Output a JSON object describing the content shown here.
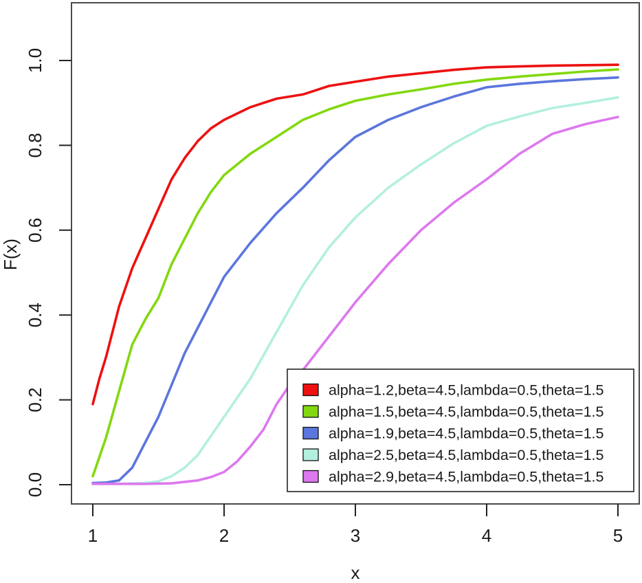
{
  "figure": {
    "background": "#ffffff",
    "border_color": "#4a4a4a",
    "tick_color": "#222222",
    "text_color": "#1a1a1a",
    "legend_background": "#ffffff",
    "legend_border_color": "#222222"
  },
  "chart_data": {
    "type": "line",
    "title": "",
    "xlabel": "x",
    "ylabel": "F(x)",
    "xlim": [
      1,
      5
    ],
    "ylim": [
      0.0,
      1.0
    ],
    "x_ticks": [
      "1",
      "2",
      "3",
      "4",
      "5"
    ],
    "y_ticks": [
      "0.0",
      "0.2",
      "0.4",
      "0.6",
      "0.8",
      "1.0"
    ],
    "grid": false,
    "legend_position": "bottom-right",
    "legend_has_border": true,
    "series": [
      {
        "name": "alpha=1.2,beta=4.5,lambda=0.5,theta=1.5",
        "color": "#ed1111",
        "points": [
          [
            1.0,
            0.19
          ],
          [
            1.05,
            0.25
          ],
          [
            1.1,
            0.3
          ],
          [
            1.2,
            0.42
          ],
          [
            1.3,
            0.51
          ],
          [
            1.4,
            0.58
          ],
          [
            1.5,
            0.65
          ],
          [
            1.6,
            0.72
          ],
          [
            1.7,
            0.77
          ],
          [
            1.8,
            0.81
          ],
          [
            1.9,
            0.84
          ],
          [
            2.0,
            0.86
          ],
          [
            2.2,
            0.89
          ],
          [
            2.4,
            0.91
          ],
          [
            2.6,
            0.92
          ],
          [
            2.8,
            0.94
          ],
          [
            3.0,
            0.95
          ],
          [
            3.25,
            0.962
          ],
          [
            3.5,
            0.97
          ],
          [
            3.75,
            0.978
          ],
          [
            4.0,
            0.984
          ],
          [
            4.25,
            0.986
          ],
          [
            4.5,
            0.988
          ],
          [
            4.75,
            0.989
          ],
          [
            5.0,
            0.99
          ]
        ]
      },
      {
        "name": "alpha=1.5,beta=4.5,lambda=0.5,theta=1.5",
        "color": "#82d80e",
        "points": [
          [
            1.0,
            0.02
          ],
          [
            1.1,
            0.11
          ],
          [
            1.2,
            0.22
          ],
          [
            1.3,
            0.33
          ],
          [
            1.4,
            0.39
          ],
          [
            1.5,
            0.44
          ],
          [
            1.6,
            0.52
          ],
          [
            1.7,
            0.58
          ],
          [
            1.8,
            0.64
          ],
          [
            1.9,
            0.69
          ],
          [
            2.0,
            0.73
          ],
          [
            2.2,
            0.78
          ],
          [
            2.4,
            0.82
          ],
          [
            2.6,
            0.86
          ],
          [
            2.8,
            0.885
          ],
          [
            3.0,
            0.905
          ],
          [
            3.25,
            0.92
          ],
          [
            3.5,
            0.932
          ],
          [
            3.75,
            0.945
          ],
          [
            4.0,
            0.955
          ],
          [
            4.25,
            0.962
          ],
          [
            4.5,
            0.968
          ],
          [
            4.75,
            0.974
          ],
          [
            5.0,
            0.979
          ]
        ]
      },
      {
        "name": "alpha=1.9,beta=4.5,lambda=0.5,theta=1.5",
        "color": "#5b76dc",
        "points": [
          [
            1.0,
            0.004
          ],
          [
            1.1,
            0.005
          ],
          [
            1.2,
            0.01
          ],
          [
            1.3,
            0.04
          ],
          [
            1.35,
            0.07
          ],
          [
            1.4,
            0.1
          ],
          [
            1.5,
            0.16
          ],
          [
            1.6,
            0.235
          ],
          [
            1.7,
            0.31
          ],
          [
            1.8,
            0.37
          ],
          [
            1.9,
            0.43
          ],
          [
            2.0,
            0.49
          ],
          [
            2.2,
            0.57
          ],
          [
            2.4,
            0.64
          ],
          [
            2.6,
            0.7
          ],
          [
            2.8,
            0.765
          ],
          [
            3.0,
            0.82
          ],
          [
            3.25,
            0.86
          ],
          [
            3.5,
            0.89
          ],
          [
            3.75,
            0.915
          ],
          [
            4.0,
            0.937
          ],
          [
            4.25,
            0.945
          ],
          [
            4.5,
            0.951
          ],
          [
            4.75,
            0.956
          ],
          [
            5.0,
            0.96
          ]
        ]
      },
      {
        "name": "alpha=2.5,beta=4.5,lambda=0.5,theta=1.5",
        "color": "#b3efdf",
        "points": [
          [
            1.0,
            0.002
          ],
          [
            1.2,
            0.002
          ],
          [
            1.4,
            0.004
          ],
          [
            1.5,
            0.008
          ],
          [
            1.6,
            0.02
          ],
          [
            1.7,
            0.04
          ],
          [
            1.8,
            0.07
          ],
          [
            1.9,
            0.115
          ],
          [
            2.0,
            0.16
          ],
          [
            2.1,
            0.205
          ],
          [
            2.2,
            0.25
          ],
          [
            2.4,
            0.36
          ],
          [
            2.6,
            0.47
          ],
          [
            2.8,
            0.56
          ],
          [
            3.0,
            0.63
          ],
          [
            3.25,
            0.7
          ],
          [
            3.5,
            0.755
          ],
          [
            3.75,
            0.805
          ],
          [
            4.0,
            0.846
          ],
          [
            4.25,
            0.868
          ],
          [
            4.5,
            0.888
          ],
          [
            4.75,
            0.9
          ],
          [
            5.0,
            0.913
          ]
        ]
      },
      {
        "name": "alpha=2.9,beta=4.5,lambda=0.5,theta=1.5",
        "color": "#dd78ee",
        "points": [
          [
            1.0,
            0.002
          ],
          [
            1.2,
            0.002
          ],
          [
            1.4,
            0.002
          ],
          [
            1.6,
            0.003
          ],
          [
            1.8,
            0.01
          ],
          [
            1.9,
            0.018
          ],
          [
            2.0,
            0.03
          ],
          [
            2.1,
            0.055
          ],
          [
            2.2,
            0.09
          ],
          [
            2.3,
            0.13
          ],
          [
            2.4,
            0.19
          ],
          [
            2.5,
            0.235
          ],
          [
            2.6,
            0.27
          ],
          [
            2.8,
            0.35
          ],
          [
            3.0,
            0.43
          ],
          [
            3.25,
            0.52
          ],
          [
            3.5,
            0.6
          ],
          [
            3.75,
            0.665
          ],
          [
            4.0,
            0.72
          ],
          [
            4.25,
            0.78
          ],
          [
            4.5,
            0.827
          ],
          [
            4.75,
            0.85
          ],
          [
            5.0,
            0.867
          ]
        ]
      }
    ]
  }
}
